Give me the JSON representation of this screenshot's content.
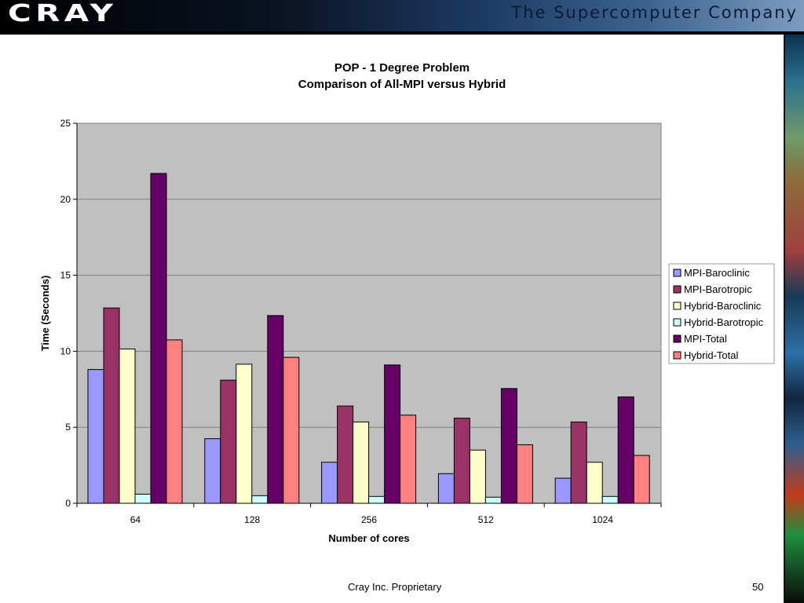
{
  "header": {
    "logo_text": "CRAY",
    "tagline": "The Supercomputer Company"
  },
  "footer": {
    "text": "Cray Inc. Proprietary",
    "page_number": "50"
  },
  "colors": {
    "plot_background": "#c0c0c0",
    "gridline": "#808080"
  },
  "chart_data": {
    "type": "bar",
    "title": "POP - 1 Degree Problem",
    "subtitle": "Comparison of All-MPI versus Hybrid",
    "xlabel": "Number of cores",
    "ylabel": "Time (Seconds)",
    "ylim": [
      0,
      25
    ],
    "yticks": [
      0,
      5,
      10,
      15,
      20,
      25
    ],
    "grid": true,
    "legend_position": "right",
    "categories": [
      "64",
      "128",
      "256",
      "512",
      "1024"
    ],
    "series": [
      {
        "name": "MPI-Baroclinic",
        "color": "#9999ff",
        "values": [
          8.8,
          4.25,
          2.7,
          1.95,
          1.65
        ]
      },
      {
        "name": "MPI-Barotropic",
        "color": "#993366",
        "values": [
          12.85,
          8.1,
          6.4,
          5.6,
          5.35
        ]
      },
      {
        "name": "Hybrid-Baroclinic",
        "color": "#ffffcc",
        "values": [
          10.15,
          9.15,
          5.35,
          3.5,
          2.7
        ]
      },
      {
        "name": "Hybrid-Barotropic",
        "color": "#ccffff",
        "values": [
          0.6,
          0.5,
          0.45,
          0.4,
          0.45
        ]
      },
      {
        "name": "MPI-Total",
        "color": "#660066",
        "values": [
          21.7,
          12.35,
          9.1,
          7.55,
          7.0
        ]
      },
      {
        "name": "Hybrid-Total",
        "color": "#ff8080",
        "values": [
          10.75,
          9.6,
          5.8,
          3.85,
          3.15
        ]
      }
    ]
  }
}
